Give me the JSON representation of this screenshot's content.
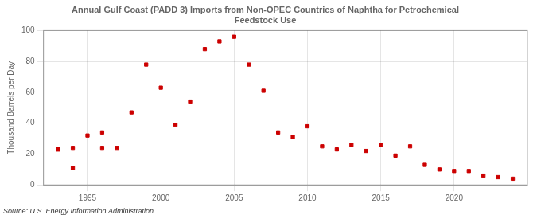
{
  "chart_data": {
    "type": "scatter",
    "title": "Annual Gulf Coast (PADD 3) Imports from Non-OPEC Countries of Naphtha for Petrochemical\nFeedstock Use",
    "ylabel": "Thousand Barrels per Day",
    "source": "Source: U.S. Energy Information Administration",
    "x": [
      1993,
      1993,
      1994,
      1994,
      1995,
      1996,
      1996,
      1997,
      1998,
      1999,
      2000,
      2001,
      2002,
      2003,
      2004,
      2005,
      2006,
      2007,
      2008,
      2009,
      2010,
      2011,
      2012,
      2013,
      2014,
      2015,
      2016,
      2017,
      2018,
      2019,
      2020,
      2021,
      2022,
      2023,
      2024
    ],
    "values": [
      23,
      23,
      24,
      11,
      32,
      24,
      34,
      24,
      47,
      78,
      63,
      39,
      54,
      88,
      93,
      96,
      78,
      61,
      34,
      31,
      38,
      25,
      23,
      26,
      22,
      26,
      19,
      25,
      13,
      10,
      9,
      9,
      6,
      5,
      4
    ],
    "color": "#cc0000",
    "marker": "square",
    "xlim": [
      1992,
      2025
    ],
    "xticks": [
      1995,
      2000,
      2005,
      2010,
      2015,
      2020
    ],
    "ylim": [
      0,
      100
    ],
    "yticks": [
      0,
      20,
      40,
      60,
      80,
      100
    ],
    "grid": true
  }
}
